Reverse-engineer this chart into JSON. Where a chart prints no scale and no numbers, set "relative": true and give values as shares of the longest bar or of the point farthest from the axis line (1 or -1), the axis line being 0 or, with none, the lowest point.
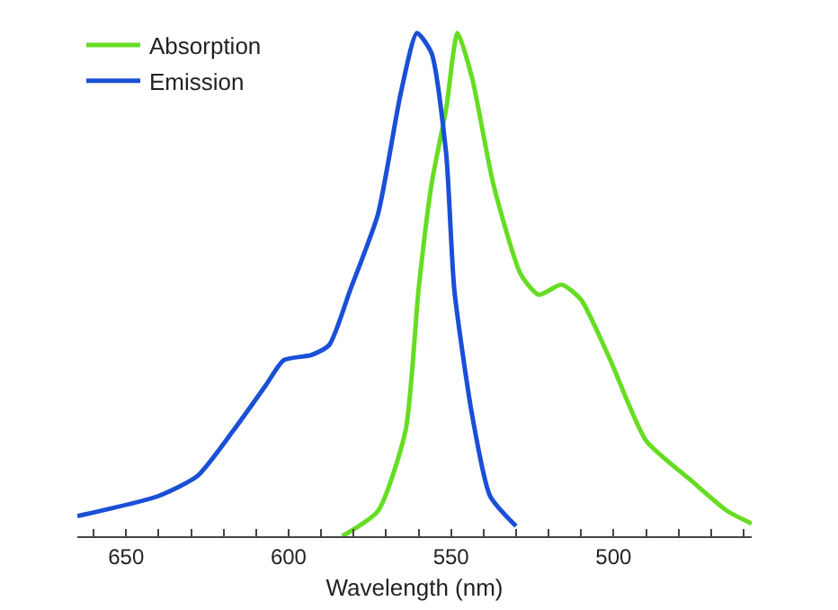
{
  "chart_data": {
    "type": "line",
    "xlabel": "Wavelength (nm)",
    "relative": true,
    "legend": "top left",
    "xlim": [
      665,
      457.5
    ],
    "xticks": [
      {
        "value": 660,
        "label": null
      },
      650,
      {
        "value": 640,
        "label": null
      },
      {
        "value": 630,
        "label": null
      },
      {
        "value": 620,
        "label": null
      },
      {
        "value": 610,
        "label": null
      },
      600,
      {
        "value": 590,
        "label": null
      },
      {
        "value": 580,
        "label": null
      },
      {
        "value": 570,
        "label": null
      },
      {
        "value": 560,
        "label": null
      },
      550,
      {
        "value": 540,
        "label": null
      },
      {
        "value": 530,
        "label": null
      },
      {
        "value": 520,
        "label": null
      },
      {
        "value": 510,
        "label": null
      },
      500,
      {
        "value": 490,
        "label": null
      },
      {
        "value": 480,
        "label": null
      },
      {
        "value": 470,
        "label": null
      },
      {
        "value": 460,
        "label": null
      }
    ],
    "series": [
      {
        "name": "Absorption",
        "color": "#66dd22",
        "x": [
          583.5,
          572.5,
          564,
          560,
          556,
          551.5,
          548,
          543.5,
          537,
          528.5,
          523,
          516,
          510,
          501,
          490,
          476,
          465,
          457.5
        ],
        "values": [
          0,
          0.05,
          0.21,
          0.49,
          0.7,
          0.85,
          1.0,
          0.91,
          0.7,
          0.52,
          0.48,
          0.5,
          0.47,
          0.35,
          0.19,
          0.11,
          0.05,
          0.025
        ]
      },
      {
        "name": "Emission",
        "color": "#1a4fd6",
        "x": [
          665,
          640,
          628,
          617,
          607,
          601.5,
          593,
          587.5,
          581,
          572.5,
          565.5,
          560.5,
          556,
          551.5,
          549,
          543.5,
          538,
          530
        ],
        "values": [
          0.04,
          0.08,
          0.12,
          0.21,
          0.3,
          0.35,
          0.36,
          0.38,
          0.49,
          0.64,
          0.88,
          1.0,
          0.96,
          0.76,
          0.49,
          0.24,
          0.08,
          0.02
        ]
      }
    ]
  }
}
